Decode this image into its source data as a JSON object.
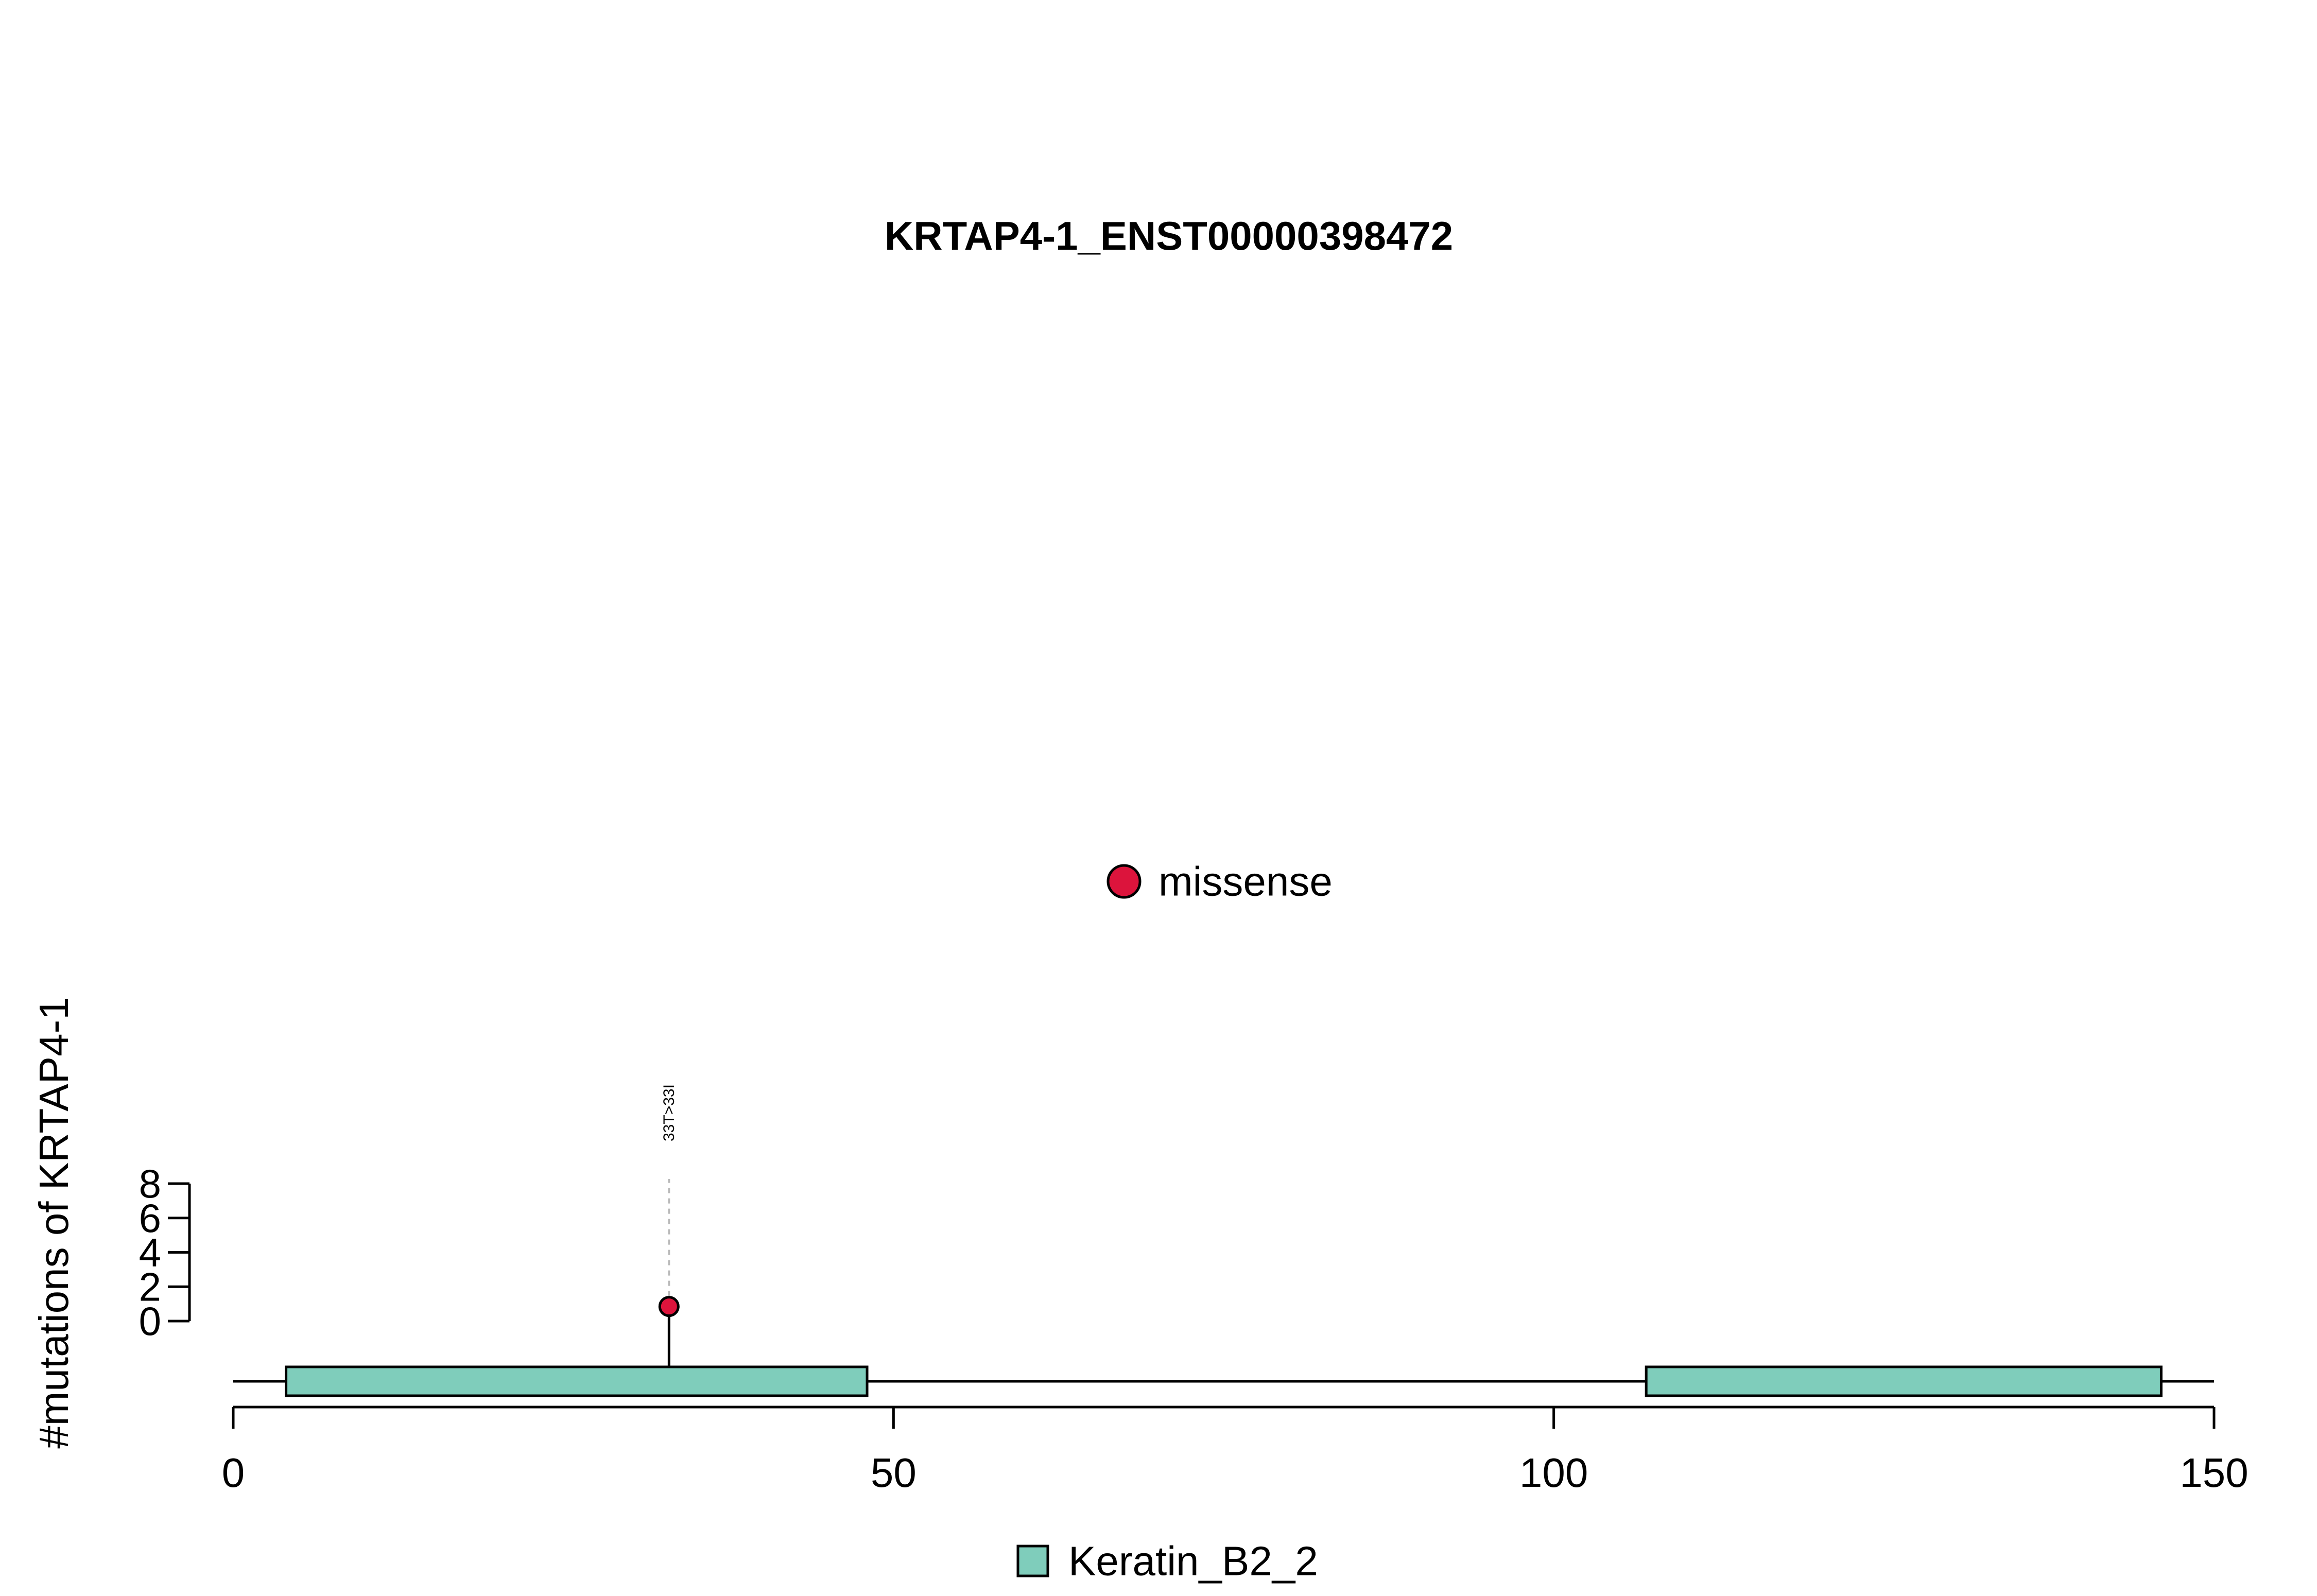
{
  "chart_data": {
    "type": "lollipop",
    "title": "KRTAP4-1_ENST00000398472",
    "ylabel": "#mutations of KRTAP4-1",
    "xlabel": "",
    "xlim": [
      0,
      150
    ],
    "ylim": [
      0,
      8
    ],
    "x_ticks": [
      "0",
      "50",
      "100",
      "150"
    ],
    "y_ticks": [
      "0",
      "2",
      "4",
      "6",
      "8"
    ],
    "mutations": [
      {
        "position": 33,
        "count": 1,
        "label": "33T>33I",
        "type": "missense"
      }
    ],
    "domains": [
      {
        "name": "Keratin_B2_2",
        "start": 4,
        "end": 48
      },
      {
        "name": "Keratin_B2_2",
        "start": 107,
        "end": 146
      }
    ],
    "mutation_legend": [
      {
        "label": "missense",
        "color": "#DC143C"
      }
    ],
    "domain_legend": [
      {
        "label": "Keratin_B2_2",
        "color": "#7FCDBB"
      }
    ],
    "colors": {
      "missense": "#DC143C",
      "domain": "#7FCDBB",
      "axis": "#000000",
      "guide_line": "#BBBBBB"
    }
  }
}
